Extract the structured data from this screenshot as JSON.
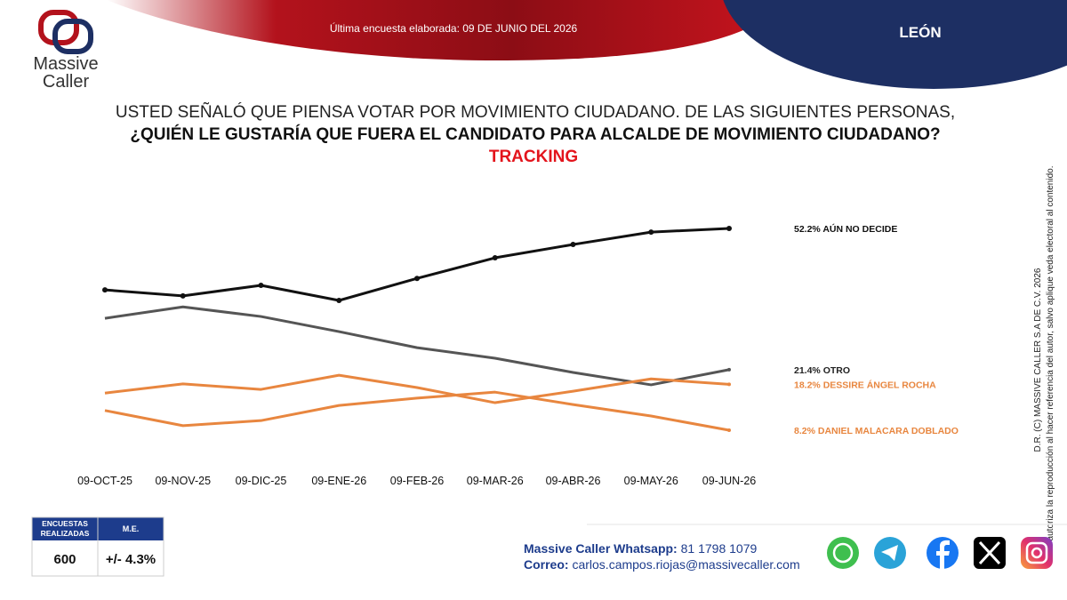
{
  "header": {
    "logo_line1": "Massive",
    "logo_line2": "Caller",
    "survey_date": "Última encuesta elaborada: 09 DE JUNIO DEL 2026",
    "city": "LEÓN"
  },
  "title": {
    "line1": "USTED SEÑALÓ QUE PIENSA VOTAR POR MOVIMIENTO CIUDADANO. DE LAS SIGUIENTES PERSONAS,",
    "line2": "¿QUIÉN LE GUSTARÍA QUE FUERA EL CANDIDATO PARA ALCALDE DE MOVIMIENTO CIUDADANO?",
    "line3": "TRACKING"
  },
  "chart_data": {
    "type": "line",
    "categories": [
      "09-OCT-25",
      "09-NOV-25",
      "09-DIC-25",
      "09-ENE-26",
      "09-FEB-26",
      "09-MAR-26",
      "09-ABR-26",
      "09-MAY-26",
      "09-JUN-26"
    ],
    "series": [
      {
        "name": "AÚN NO DECIDE",
        "color": "#111111",
        "values": [
          38.8,
          37.5,
          39.8,
          36.5,
          41.3,
          45.8,
          48.7,
          51.4,
          52.2
        ],
        "value_labels": [
          null,
          null,
          null,
          null,
          null,
          null,
          null,
          null,
          "52.2%"
        ]
      },
      {
        "name": "OTRO",
        "color": "#555555",
        "values": [
          32.6,
          35.1,
          33.0,
          29.7,
          26.2,
          23.9,
          20.8,
          18.1,
          21.4
        ],
        "value_labels": [
          null,
          null,
          null,
          null,
          null,
          null,
          null,
          null,
          "21.4%"
        ]
      },
      {
        "name": "DESSIRE ÁNGEL ROCHA",
        "color": "#e8863f",
        "values": [
          16.3,
          18.3,
          17.1,
          20.2,
          17.5,
          14.2,
          16.7,
          19.4,
          18.2
        ],
        "value_labels": [
          null,
          null,
          null,
          null,
          null,
          null,
          null,
          null,
          "18.2%"
        ]
      },
      {
        "name": "DANIEL MALACARA DOBLADO",
        "color": "#e8863f",
        "values": [
          12.5,
          9.2,
          10.3,
          13.6,
          15.2,
          16.5,
          13.8,
          11.3,
          8.2
        ],
        "value_labels": [
          null,
          null,
          null,
          null,
          null,
          null,
          null,
          null,
          "8.2%"
        ]
      }
    ]
  },
  "copyright": {
    "line1": "D.R. (C) MASSIVE CALLER S.A DE C.V. 2026",
    "line2": "Se autoriza la reproducción al hacer referencia del autor, salvo aplique veda electoral al contenido."
  },
  "table": {
    "headers": [
      "ENCUESTAS REALIZADAS",
      "M.E."
    ],
    "row": [
      600,
      "+/- 4.3%"
    ]
  },
  "contact": {
    "whatsapp_label": "Massive Caller Whatsapp:",
    "whatsapp_number": "81 1798 1079",
    "email_label": "Correo:",
    "email": "carlos.campos.riojas@massivecaller.com"
  }
}
